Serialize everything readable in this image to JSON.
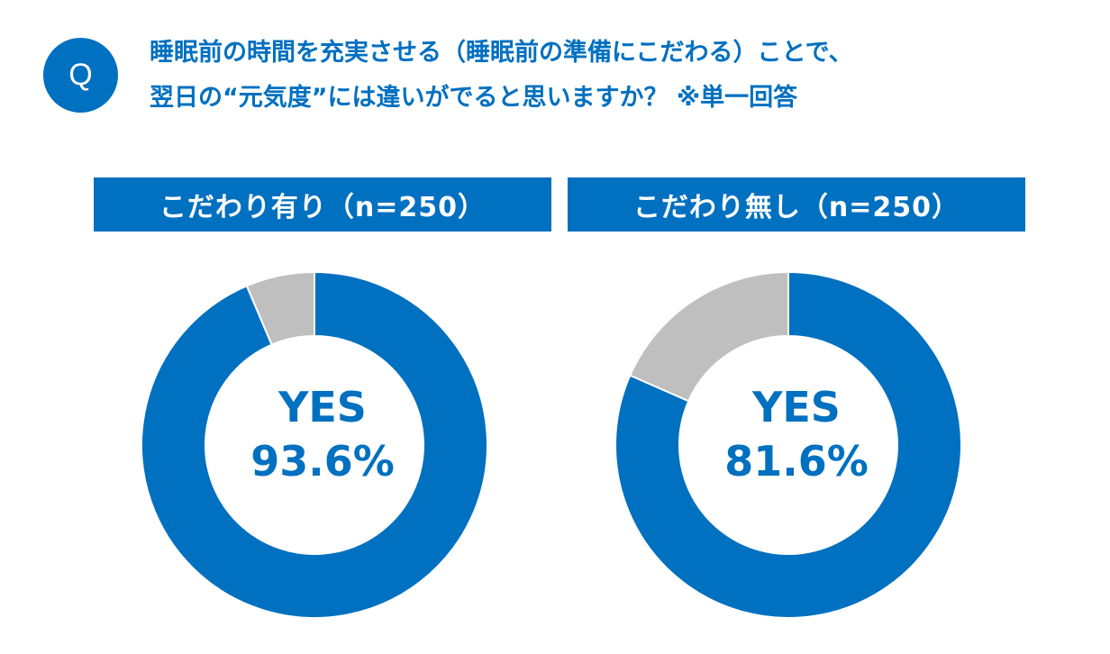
{
  "question": {
    "badge": "Q",
    "line1": "睡眠前の時間を充実させる（睡眠前の準備にこだわる）ことで、",
    "line2": "翌日の“元気度”には違いがでると思いますか？ ※単一回答"
  },
  "colors": {
    "accent": "#0070c0",
    "other": "#bfbfbf"
  },
  "chart_data": [
    {
      "type": "pie",
      "title": "こだわり有り（n=250）",
      "slices": [
        {
          "label": "YES",
          "value": 93.6,
          "color": "#0070c0"
        },
        {
          "label": "",
          "value": 6.4,
          "color": "#bfbfbf"
        }
      ],
      "center_label": "YES",
      "center_value": "93.6%"
    },
    {
      "type": "pie",
      "title": "こだわり無し（n=250）",
      "slices": [
        {
          "label": "YES",
          "value": 81.6,
          "color": "#0070c0"
        },
        {
          "label": "",
          "value": 18.4,
          "color": "#bfbfbf"
        }
      ],
      "center_label": "YES",
      "center_value": "81.6%"
    }
  ]
}
